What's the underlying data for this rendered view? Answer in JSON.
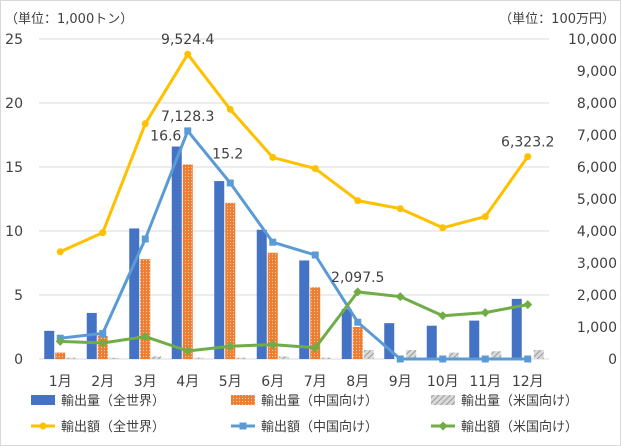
{
  "chart_data": {
    "type": "bar+line",
    "left_axis_unit": "（単位：1,000トン）",
    "right_axis_unit": "（単位：100万円）",
    "categories": [
      "1月",
      "2月",
      "3月",
      "4月",
      "5月",
      "6月",
      "7月",
      "8月",
      "9月",
      "10月",
      "11月",
      "12月"
    ],
    "left_axis": {
      "min": 0,
      "max": 25,
      "ticks": [
        "0",
        "5",
        "10",
        "15",
        "20",
        "25"
      ]
    },
    "right_axis": {
      "min": 0,
      "max": 10000,
      "ticks": [
        "0",
        "1,000",
        "2,000",
        "3,000",
        "4,000",
        "5,000",
        "6,000",
        "7,000",
        "8,000",
        "9,000",
        "10,000"
      ]
    },
    "bar_series": [
      {
        "name": "輸出量（全世界）",
        "color": "#4472c4",
        "values": [
          2.2,
          3.6,
          10.2,
          16.6,
          13.9,
          10.1,
          7.7,
          3.9,
          2.8,
          2.6,
          3.0,
          4.7
        ]
      },
      {
        "name": "輸出量（中国向け）",
        "color": "#ed7d31",
        "values": [
          0.5,
          1.8,
          7.8,
          15.2,
          12.2,
          8.3,
          5.6,
          2.5,
          0.0,
          0.0,
          0.0,
          0.0
        ]
      },
      {
        "name": "輸出量（米国向け）",
        "color": "#a5a5a5",
        "values": [
          0.1,
          0.1,
          0.2,
          0.1,
          0.1,
          0.2,
          0.1,
          0.7,
          0.7,
          0.5,
          0.6,
          0.7
        ]
      }
    ],
    "line_series": [
      {
        "name": "輸出額（全世界）",
        "color": "#ffc000",
        "values": [
          3350,
          3950,
          7350,
          9524.4,
          7800,
          6300,
          5950,
          4950,
          4700,
          4100,
          4450,
          6323.2
        ]
      },
      {
        "name": "輸出額（中国向け）",
        "color": "#5b9bd5",
        "values": [
          650,
          800,
          3750,
          7128.3,
          5500,
          3650,
          3250,
          1150,
          0,
          0,
          0,
          0
        ]
      },
      {
        "name": "輸出額（米国向け）",
        "color": "#70ad47",
        "values": [
          550,
          500,
          700,
          250,
          400,
          450,
          350,
          2097.5,
          1950,
          1350,
          1450,
          1700
        ]
      }
    ],
    "data_labels": [
      {
        "text": "16.6",
        "series": "輸出量（全世界）",
        "index": 3
      },
      {
        "text": "15.2",
        "series": "輸出量（中国向け）",
        "index": 3
      },
      {
        "text": "9,524.4",
        "series": "輸出額（全世界）",
        "index": 3
      },
      {
        "text": "7,128.3",
        "series": "輸出額（中国向け）",
        "index": 3
      },
      {
        "text": "2,097.5",
        "series": "輸出額（米国向け）",
        "index": 7
      },
      {
        "text": "6,323.2",
        "series": "輸出額（全世界）",
        "index": 11
      }
    ],
    "legend": [
      "輸出量（全世界）",
      "輸出量（中国向け）",
      "輸出量（米国向け）",
      "輸出額（全世界）",
      "輸出額（中国向け）",
      "輸出額（米国向け）"
    ]
  }
}
